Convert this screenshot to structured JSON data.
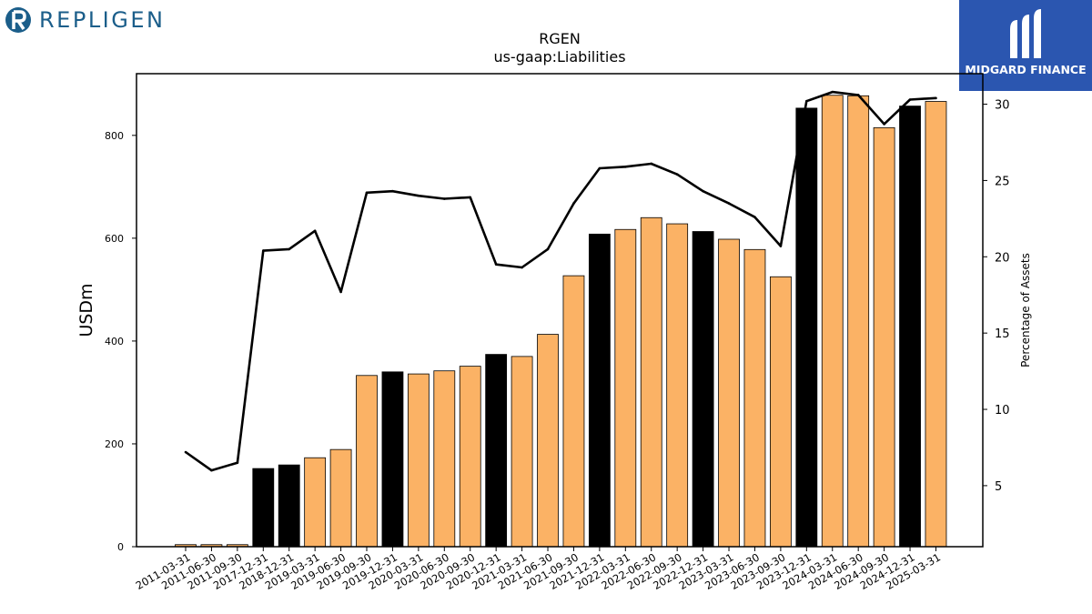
{
  "brands": {
    "left_logo": "REPLIGEN",
    "right_logo": "MIDGARD FINANCE"
  },
  "chart_data": {
    "type": "bar",
    "title": "RGEN",
    "subtitle": "us-gaap:Liabilities",
    "ylabel": "USDm",
    "y2label": "Percentage of Assets",
    "ylim": [
      0,
      920
    ],
    "y2lim": [
      1,
      32
    ],
    "yticks": [
      0,
      200,
      400,
      600,
      800
    ],
    "y2ticks": [
      5,
      10,
      15,
      20,
      25,
      30
    ],
    "grid": false,
    "colors": {
      "bar_q4": "#000000",
      "bar_other": "#fbb265",
      "line": "#000000"
    },
    "categories": [
      "2011-03-31",
      "2011-06-30",
      "2011-09-30",
      "2017-12-31",
      "2018-12-31",
      "2019-03-31",
      "2019-06-30",
      "2019-09-30",
      "2019-12-31",
      "2020-03-31",
      "2020-06-30",
      "2020-09-30",
      "2020-12-31",
      "2021-03-31",
      "2021-06-30",
      "2021-09-30",
      "2021-12-31",
      "2022-03-31",
      "2022-06-30",
      "2022-09-30",
      "2022-12-31",
      "2023-03-31",
      "2023-06-30",
      "2023-09-30",
      "2023-12-31",
      "2024-03-31",
      "2024-06-30",
      "2024-09-30",
      "2024-12-31",
      "2025-03-31"
    ],
    "series": [
      {
        "type": "bar",
        "values": [
          4,
          4,
          4,
          152,
          159,
          173,
          189,
          333,
          340,
          336,
          342,
          351,
          374,
          370,
          413,
          527,
          608,
          617,
          640,
          628,
          613,
          598,
          578,
          525,
          853,
          878,
          877,
          815,
          857,
          866
        ]
      },
      {
        "type": "line",
        "values": [
          7.2,
          6.0,
          6.5,
          20.4,
          20.5,
          21.7,
          17.7,
          24.2,
          24.3,
          24.0,
          23.8,
          23.9,
          19.5,
          19.3,
          20.5,
          23.5,
          25.8,
          25.9,
          26.1,
          25.4,
          24.3,
          23.5,
          22.6,
          20.7,
          30.2,
          30.8,
          30.6,
          28.7,
          30.3,
          30.4
        ]
      }
    ]
  }
}
